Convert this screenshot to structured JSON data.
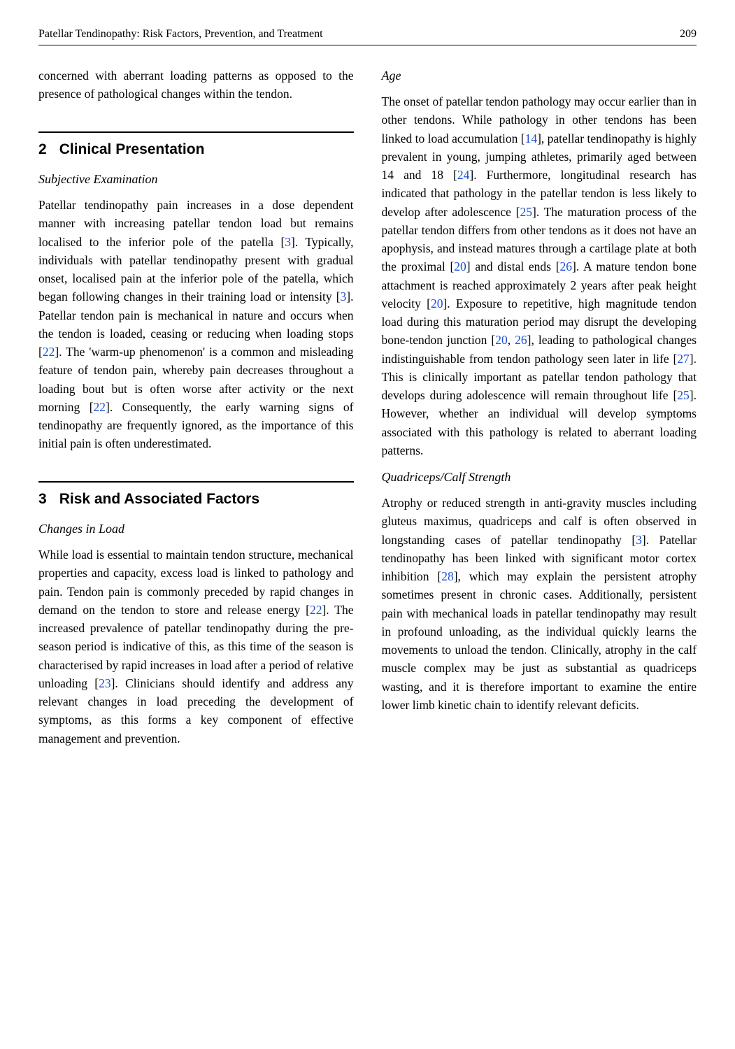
{
  "header": {
    "running_head": "Patellar Tendinopathy: Risk Factors, Prevention, and Treatment",
    "page_number": "209"
  },
  "left_col": {
    "intro_para": "concerned with aberrant loading patterns as opposed to the presence of pathological changes within the tendon.",
    "sec2": {
      "num": "2",
      "title": "Clinical Presentation",
      "sub1_title": "Subjective Examination",
      "sub1_para_parts": [
        "Patellar tendinopathy pain increases in a dose dependent manner with increasing patellar tendon load but remains localised to the inferior pole of the patella [",
        "3",
        "]. Typically, individuals with patellar tendinopathy present with gradual onset, localised pain at the inferior pole of the patella, which began following changes in their training load or intensity [",
        "3",
        "]. Patellar tendon pain is mechanical in nature and occurs when the tendon is loaded, ceasing or reducing when loading stops [",
        "22",
        "]. The 'warm-up phenomenon' is a common and misleading feature of tendon pain, whereby pain decreases throughout a loading bout but is often worse after activity or the next morning [",
        "22",
        "]. Consequently, the early warning signs of tendinopathy are frequently ignored, as the importance of this initial pain is often underestimated."
      ]
    },
    "sec3": {
      "num": "3",
      "title": "Risk and Associated Factors",
      "sub1_title": "Changes in Load",
      "sub1_para_parts": [
        "While load is essential to maintain tendon structure, mechanical properties and capacity, excess load is linked to pathology and pain. Tendon pain is commonly preceded by rapid changes in demand on the tendon to store and release energy [",
        "22",
        "]. The increased prevalence of patellar tendinopathy during the pre-season period is indicative of this, as this time of the season is characterised by rapid increases in load after a period of relative unloading [",
        "23",
        "]. Clinicians should identify and address any relevant changes in load preceding the development of symptoms, as this forms a key component of effective management and prevention."
      ]
    }
  },
  "right_col": {
    "sub_age_title": "Age",
    "sub_age_para_parts": [
      "The onset of patellar tendon pathology may occur earlier than in other tendons. While pathology in other tendons has been linked to load accumulation [",
      "14",
      "], patellar tendinopathy is highly prevalent in young, jumping athletes, primarily aged between 14 and 18 [",
      "24",
      "]. Furthermore, longitudinal research has indicated that pathology in the patellar tendon is less likely to develop after adolescence [",
      "25",
      "]. The maturation process of the patellar tendon differs from other tendons as it does not have an apophysis, and instead matures through a cartilage plate at both the proximal [",
      "20",
      "] and distal ends [",
      "26",
      "]. A mature tendon bone attachment is reached approximately 2 years after peak height velocity [",
      "20",
      "]. Exposure to repetitive, high magnitude tendon load during this maturation period may disrupt the developing bone-tendon junction [",
      "20",
      ", ",
      "26",
      "], leading to pathological changes indistinguishable from tendon pathology seen later in life [",
      "27",
      "]. This is clinically important as patellar tendon pathology that develops during adolescence will remain throughout life [",
      "25",
      "]. However, whether an individual will develop symptoms associated with this pathology is related to aberrant loading patterns."
    ],
    "sub_quad_title": "Quadriceps/Calf Strength",
    "sub_quad_para_parts": [
      "Atrophy or reduced strength in anti-gravity muscles including gluteus maximus, quadriceps and calf is often observed in longstanding cases of patellar tendinopathy [",
      "3",
      "]. Patellar tendinopathy has been linked with significant motor cortex inhibition [",
      "28",
      "], which may explain the persistent atrophy sometimes present in chronic cases. Additionally, persistent pain with mechanical loads in patellar tendinopathy may result in profound unloading, as the individual quickly learns the movements to unload the tendon. Clinically, atrophy in the calf muscle complex may be just as substantial as quadriceps wasting, and it is therefore important to examine the entire lower limb kinetic chain to identify relevant deficits."
    ]
  }
}
